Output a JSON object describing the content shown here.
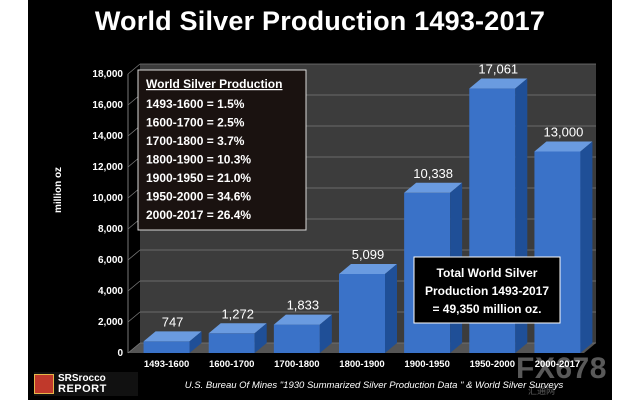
{
  "chart_data": {
    "type": "bar",
    "title": "World Silver Production 1493-2017",
    "xlabel": "",
    "ylabel": "million oz",
    "ylim": [
      0,
      18000
    ],
    "yticks": [
      "0",
      "2,000",
      "4,000",
      "6,000",
      "8,000",
      "10,000",
      "12,000",
      "14,000",
      "16,000",
      "18,000"
    ],
    "categories": [
      "1493-1600",
      "1600-1700",
      "1700-1800",
      "1800-1900",
      "1900-1950",
      "1950-2000",
      "2000-2017"
    ],
    "values": [
      747,
      1272,
      1833,
      5099,
      10338,
      17061,
      13000
    ],
    "value_labels": [
      "747",
      "1,272",
      "1,833",
      "5,099",
      "10,338",
      "17,061",
      "13,000"
    ],
    "grid": true,
    "colors": {
      "bar_front": "#3a72c8",
      "bar_top": "#6a9be0",
      "bar_side": "#1f4f97",
      "background": "#000000",
      "panel": "#3c3c3c"
    }
  },
  "share_box": {
    "heading": "World Silver Production",
    "rows": [
      "1493-1600 = 1.5%",
      "1600-1700 = 2.5%",
      "1700-1800 = 3.7%",
      "1800-1900 = 10.3%",
      "1900-1950 = 21.0%",
      "1950-2000 = 34.6%",
      "2000-2017 = 26.4%"
    ]
  },
  "total_box": {
    "lines": [
      "Total World Silver",
      "Production 1493-2017",
      "= 49,350 million oz."
    ]
  },
  "logo": {
    "line1": "SRSrocco",
    "line2": "REPORT"
  },
  "source_text": "U.S. Bureau Of Mines \"1930 Summarized Silver Production Data \"  & World Silver Surveys",
  "watermark": {
    "main": "FX678",
    "sub": "汇通网"
  }
}
